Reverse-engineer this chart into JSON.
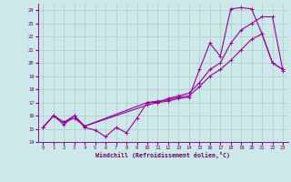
{
  "xlabel": "Windchill (Refroidissement éolien,°C)",
  "bg_color": "#cce8e8",
  "grid_color": "#aacaca",
  "line_color": "#990099",
  "xlim": [
    -0.5,
    23.5
  ],
  "ylim": [
    14,
    24.5
  ],
  "yticks": [
    14,
    15,
    16,
    17,
    18,
    19,
    20,
    21,
    22,
    23,
    24
  ],
  "xticks": [
    0,
    1,
    2,
    3,
    4,
    5,
    6,
    7,
    8,
    9,
    10,
    11,
    12,
    13,
    14,
    15,
    16,
    17,
    18,
    19,
    20,
    21,
    22,
    23
  ],
  "series1_x": [
    0,
    1,
    2,
    3,
    4,
    5,
    6,
    7,
    8,
    9,
    10,
    11,
    12,
    13,
    14,
    15,
    16,
    17,
    18,
    19,
    20,
    21,
    22,
    23
  ],
  "series1_y": [
    15.1,
    16.0,
    15.3,
    16.0,
    15.1,
    14.9,
    14.4,
    15.1,
    14.7,
    15.8,
    17.0,
    17.0,
    17.1,
    17.3,
    17.4,
    19.5,
    21.5,
    20.5,
    24.1,
    24.2,
    24.1,
    22.2,
    20.0,
    19.5
  ],
  "series2_x": [
    0,
    1,
    2,
    3,
    4,
    10,
    11,
    12,
    13,
    14,
    15,
    16,
    17,
    18,
    19,
    20,
    21,
    22,
    23
  ],
  "series2_y": [
    15.1,
    16.0,
    15.5,
    16.0,
    15.2,
    17.0,
    17.1,
    17.2,
    17.4,
    17.5,
    18.2,
    19.0,
    19.5,
    20.2,
    21.0,
    21.8,
    22.2,
    20.0,
    19.5
  ],
  "series3_x": [
    0,
    1,
    2,
    3,
    4,
    10,
    11,
    12,
    13,
    14,
    15,
    16,
    17,
    18,
    19,
    20,
    21,
    22,
    23
  ],
  "series3_y": [
    15.1,
    16.0,
    15.5,
    15.8,
    15.2,
    16.8,
    17.0,
    17.3,
    17.5,
    17.7,
    18.5,
    19.5,
    20.0,
    21.5,
    22.5,
    23.0,
    23.5,
    23.5,
    19.4
  ]
}
